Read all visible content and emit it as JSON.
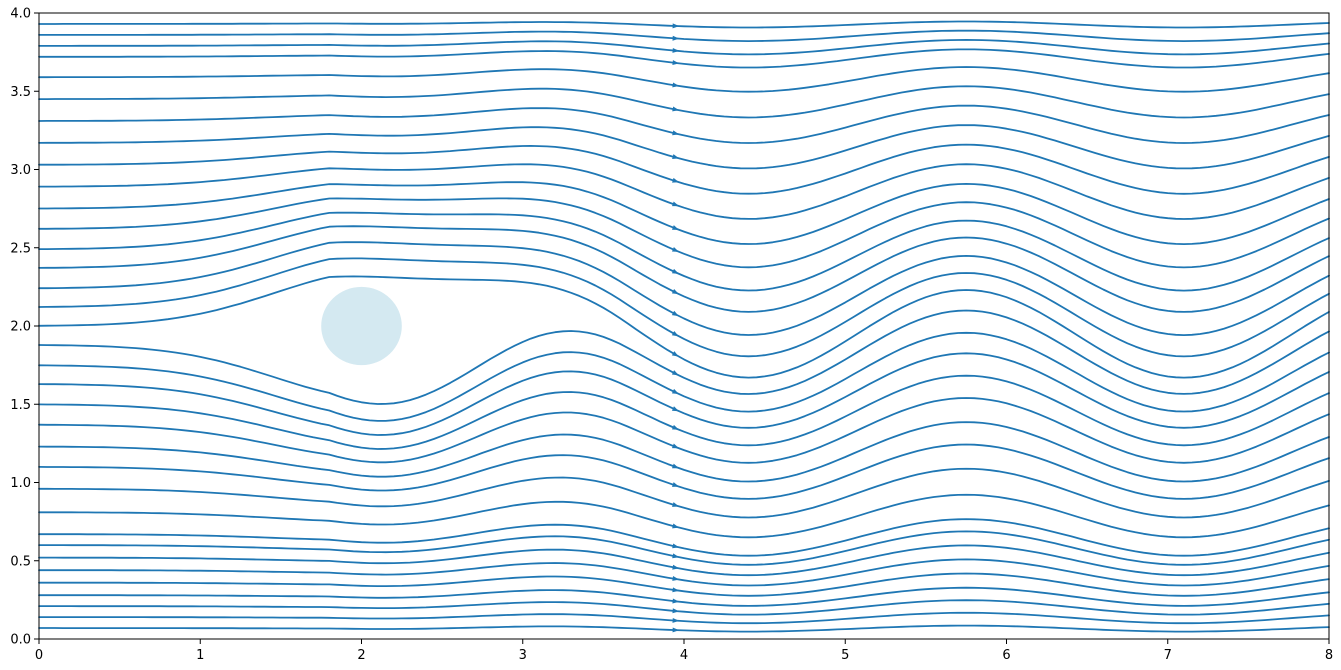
{
  "chart_data": {
    "type": "streamplot",
    "title": "",
    "xlabel": "",
    "ylabel": "",
    "xlim": [
      0,
      8
    ],
    "ylim": [
      0,
      4
    ],
    "xticks": [
      "0",
      "1",
      "2",
      "3",
      "4",
      "5",
      "6",
      "7",
      "8"
    ],
    "yticks": [
      "0.0",
      "0.5",
      "1.0",
      "1.5",
      "2.0",
      "2.5",
      "3.0",
      "3.5",
      "4.0"
    ],
    "grid": false,
    "legend": false,
    "stream_color": "#1f77b4",
    "obstacle": {
      "shape": "circle",
      "cx": 2.0,
      "cy": 2.0,
      "r": 0.25,
      "color": "#d4e9f1"
    },
    "streamlines_upstream_y": [
      0.07,
      0.14,
      0.21,
      0.28,
      0.36,
      0.44,
      0.52,
      0.6,
      0.67,
      0.81,
      0.96,
      1.1,
      1.23,
      1.37,
      1.5,
      1.63,
      1.75,
      1.88,
      2.0,
      2.12,
      2.24,
      2.37,
      2.49,
      2.62,
      2.75,
      2.89,
      3.03,
      3.17,
      3.31,
      3.45,
      3.59,
      3.72,
      3.79,
      3.86,
      3.93
    ]
  }
}
